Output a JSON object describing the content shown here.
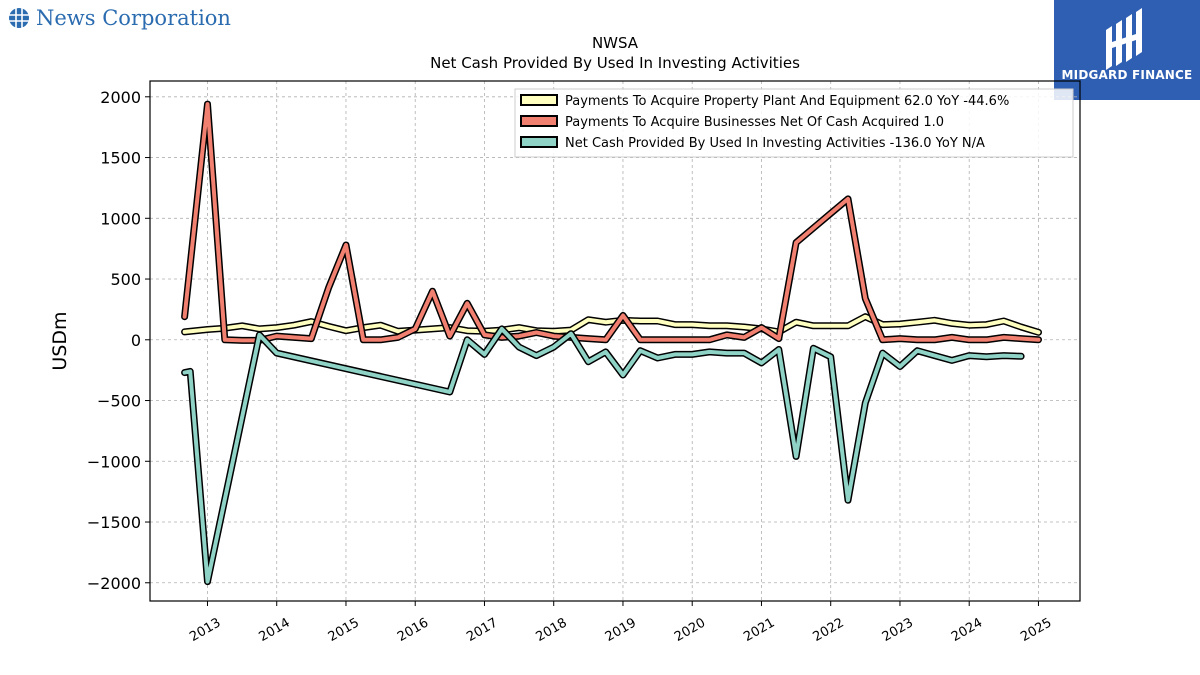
{
  "brand": {
    "name": "News Corporation",
    "icon": "globe-icon"
  },
  "badge": {
    "text": "MIDGARD FINANCE",
    "icon": "midgard-logo-icon"
  },
  "colors": {
    "series1": "#ffffc0",
    "series2": "#f28070",
    "series3": "#8fd3c7",
    "outline": "#000000",
    "brand": "#2b6cb0",
    "badge": "#2f5fb3"
  },
  "chart_data": {
    "type": "line",
    "title": "NWSA",
    "subtitle": "Net Cash Provided By Used In Investing Activities",
    "xlabel": "",
    "ylabel": "USDm",
    "ylim": [
      -2150,
      2130
    ],
    "xlim": [
      2012.17,
      2025.6
    ],
    "grid": true,
    "legend_position": "top-right",
    "yticks": [
      {
        "value": 2000,
        "label": "2000"
      },
      {
        "value": 1500,
        "label": "1500"
      },
      {
        "value": 1000,
        "label": "1000"
      },
      {
        "value": 500,
        "label": "500"
      },
      {
        "value": 0,
        "label": "0"
      },
      {
        "value": -500,
        "label": "−500"
      },
      {
        "value": -1000,
        "label": "−1000"
      },
      {
        "value": -1500,
        "label": "−1500"
      },
      {
        "value": -2000,
        "label": "−2000"
      }
    ],
    "xticks": [
      {
        "value": 2013,
        "label": "2013"
      },
      {
        "value": 2014,
        "label": "2014"
      },
      {
        "value": 2015,
        "label": "2015"
      },
      {
        "value": 2016,
        "label": "2016"
      },
      {
        "value": 2017,
        "label": "2017"
      },
      {
        "value": 2018,
        "label": "2018"
      },
      {
        "value": 2019,
        "label": "2019"
      },
      {
        "value": 2020,
        "label": "2020"
      },
      {
        "value": 2021,
        "label": "2021"
      },
      {
        "value": 2022,
        "label": "2022"
      },
      {
        "value": 2023,
        "label": "2023"
      },
      {
        "value": 2024,
        "label": "2024"
      },
      {
        "value": 2025,
        "label": "2025"
      }
    ],
    "series": [
      {
        "name": "Payments To Acquire Property Plant And Equipment  62.0 YoY -44.6%",
        "color": "#ffffc0",
        "x": [
          2012.67,
          2013.0,
          2013.25,
          2013.5,
          2013.75,
          2014.0,
          2014.25,
          2014.5,
          2014.75,
          2015.0,
          2015.25,
          2015.5,
          2015.75,
          2016.0,
          2016.25,
          2016.5,
          2016.75,
          2017.0,
          2017.25,
          2017.5,
          2017.75,
          2018.0,
          2018.25,
          2018.5,
          2018.75,
          2019.0,
          2019.25,
          2019.5,
          2019.75,
          2020.0,
          2020.25,
          2020.5,
          2020.75,
          2021.0,
          2021.25,
          2021.5,
          2021.75,
          2022.0,
          2022.25,
          2022.5,
          2022.75,
          2023.0,
          2023.25,
          2023.5,
          2023.75,
          2024.0,
          2024.25,
          2024.5,
          2024.75,
          2025.0
        ],
        "values": [
          65,
          85,
          95,
          115,
          90,
          100,
          120,
          150,
          110,
          75,
          100,
          120,
          70,
          80,
          90,
          100,
          75,
          70,
          80,
          100,
          75,
          70,
          80,
          165,
          145,
          160,
          155,
          155,
          125,
          125,
          115,
          115,
          105,
          90,
          65,
          145,
          115,
          115,
          115,
          190,
          125,
          130,
          145,
          160,
          135,
          120,
          125,
          155,
          105,
          62
        ]
      },
      {
        "name": "Payments To Acquire Businesses Net Of Cash Acquired  1.0",
        "color": "#f28070",
        "x": [
          2012.67,
          2013.0,
          2013.25,
          2013.5,
          2013.75,
          2014.0,
          2014.25,
          2014.5,
          2014.75,
          2015.0,
          2015.25,
          2015.5,
          2015.75,
          2016.0,
          2016.25,
          2016.5,
          2016.75,
          2017.0,
          2017.25,
          2017.5,
          2017.75,
          2018.0,
          2018.25,
          2018.5,
          2018.75,
          2019.0,
          2019.25,
          2019.5,
          2019.75,
          2020.0,
          2020.25,
          2020.5,
          2020.75,
          2021.0,
          2021.25,
          2021.5,
          2021.75,
          2022.0,
          2022.25,
          2022.5,
          2022.75,
          2023.0,
          2023.25,
          2023.5,
          2023.75,
          2024.0,
          2024.25,
          2024.5,
          2024.75,
          2025.0
        ],
        "values": [
          190,
          1940,
          0,
          -5,
          -5,
          30,
          20,
          10,
          430,
          780,
          0,
          0,
          20,
          90,
          400,
          30,
          300,
          40,
          20,
          30,
          60,
          30,
          20,
          10,
          0,
          200,
          0,
          0,
          0,
          0,
          0,
          40,
          20,
          100,
          10,
          800,
          920,
          1040,
          1160,
          340,
          0,
          10,
          0,
          0,
          20,
          0,
          0,
          20,
          10,
          1
        ]
      },
      {
        "name": "Net Cash Provided By Used In Investing Activities  -136.0 YoY N/A",
        "color": "#8fd3c7",
        "x": [
          2012.67,
          2012.75,
          2013.0,
          2013.75,
          2014.0,
          2016.5,
          2016.75,
          2017.0,
          2017.25,
          2017.5,
          2017.75,
          2018.0,
          2018.25,
          2018.5,
          2018.75,
          2019.0,
          2019.25,
          2019.5,
          2019.75,
          2020.0,
          2020.25,
          2020.5,
          2020.75,
          2021.0,
          2021.25,
          2021.5,
          2021.75,
          2022.0,
          2022.25,
          2022.5,
          2022.75,
          2023.0,
          2023.25,
          2023.5,
          2023.75,
          2024.0,
          2024.25,
          2024.5,
          2024.75
        ],
        "values": [
          -270,
          -260,
          -1990,
          40,
          -110,
          -430,
          0,
          -120,
          90,
          -60,
          -130,
          -60,
          50,
          -180,
          -100,
          -290,
          -90,
          -150,
          -120,
          -120,
          -100,
          -110,
          -110,
          -190,
          -80,
          -960,
          -70,
          -140,
          -1320,
          -520,
          -110,
          -220,
          -90,
          -130,
          -170,
          -130,
          -140,
          -130,
          -136
        ]
      }
    ]
  }
}
